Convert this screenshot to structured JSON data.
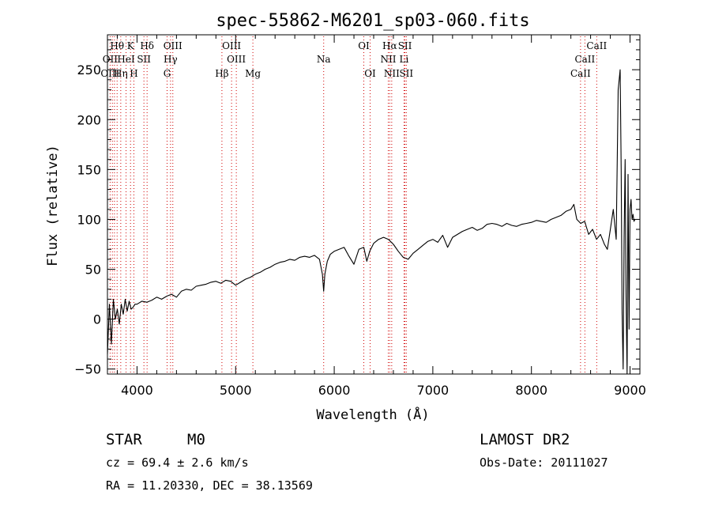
{
  "chart_data": {
    "type": "line",
    "title": "spec-55862-M6201_sp03-060.fits",
    "xlabel": "Wavelength (Å)",
    "ylabel": "Flux (relative)",
    "xlim": [
      3700,
      9100
    ],
    "ylim": [
      -55,
      285
    ],
    "xticks": [
      4000,
      5000,
      6000,
      7000,
      8000,
      9000
    ],
    "yticks": [
      -50,
      0,
      50,
      100,
      150,
      200,
      250
    ],
    "grid": false,
    "line_color": "#000000",
    "marker_color": "#d00000",
    "series": [
      {
        "x": [
          3700,
          3720,
          3740,
          3760,
          3780,
          3800,
          3820,
          3840,
          3860,
          3880,
          3900,
          3920,
          3940,
          3960,
          3980,
          4000,
          4050,
          4100,
          4150,
          4200,
          4250,
          4300,
          4350,
          4400,
          4450,
          4500,
          4550,
          4600,
          4650,
          4700,
          4750,
          4800,
          4850,
          4900,
          4950,
          5000,
          5050,
          5100,
          5150,
          5200,
          5250,
          5300,
          5350,
          5400,
          5450,
          5500,
          5550,
          5600,
          5650,
          5700,
          5750,
          5800,
          5850,
          5880,
          5893,
          5905,
          5930,
          5960,
          6000,
          6050,
          6100,
          6150,
          6200,
          6250,
          6300,
          6330,
          6360,
          6400,
          6450,
          6500,
          6550,
          6600,
          6650,
          6700,
          6750,
          6800,
          6850,
          6900,
          6950,
          7000,
          7050,
          7100,
          7150,
          7200,
          7250,
          7300,
          7350,
          7400,
          7450,
          7500,
          7550,
          7600,
          7650,
          7700,
          7750,
          7800,
          7850,
          7900,
          7950,
          8000,
          8050,
          8100,
          8150,
          8200,
          8250,
          8300,
          8350,
          8400,
          8430,
          8460,
          8500,
          8540,
          8580,
          8620,
          8660,
          8700,
          8740,
          8770,
          8800,
          8830,
          8860,
          8880,
          8900,
          8910,
          8920,
          8930,
          8940,
          8950,
          8960,
          8970,
          8980,
          8990,
          9000,
          9010,
          9020,
          9030,
          9040,
          9050
        ],
        "y": [
          -35,
          15,
          -25,
          20,
          0,
          10,
          -5,
          15,
          5,
          20,
          8,
          18,
          10,
          12,
          15,
          15,
          18,
          17,
          19,
          22,
          20,
          23,
          25,
          22,
          28,
          30,
          29,
          33,
          34,
          35,
          37,
          38,
          36,
          39,
          38,
          34,
          37,
          40,
          42,
          45,
          47,
          50,
          52,
          55,
          57,
          58,
          60,
          59,
          62,
          63,
          62,
          64,
          60,
          45,
          28,
          45,
          58,
          65,
          68,
          70,
          72,
          63,
          55,
          70,
          72,
          58,
          68,
          76,
          80,
          82,
          80,
          75,
          68,
          62,
          60,
          66,
          70,
          74,
          78,
          80,
          77,
          84,
          72,
          82,
          85,
          88,
          90,
          92,
          89,
          91,
          95,
          96,
          95,
          93,
          96,
          94,
          93,
          95,
          96,
          97,
          99,
          98,
          97,
          100,
          102,
          104,
          108,
          110,
          115,
          100,
          96,
          98,
          85,
          90,
          80,
          85,
          75,
          70,
          90,
          110,
          80,
          230,
          250,
          150,
          5,
          -50,
          80,
          160,
          20,
          -55,
          145,
          -10,
          110,
          120,
          100,
          105,
          98,
          100
        ]
      }
    ],
    "spectral_lines": {
      "row1": [
        {
          "label": "Hθ",
          "wl": 3798
        },
        {
          "label": "K",
          "wl": 3934
        },
        {
          "label": "Hδ",
          "wl": 4102
        },
        {
          "label": "OIII",
          "wl": 4363
        },
        {
          "label": "OIII",
          "wl": 4959
        },
        {
          "label": "OI",
          "wl": 6300
        },
        {
          "label": "Hα",
          "wl": 6563
        },
        {
          "label": "SII",
          "wl": 6717
        },
        {
          "label": "CaII",
          "wl": 8662
        }
      ],
      "row2": [
        {
          "label": "OII",
          "wl": 3727
        },
        {
          "label": "HeI",
          "wl": 3889
        },
        {
          "label": "SII",
          "wl": 4070
        },
        {
          "label": "Hγ",
          "wl": 4340
        },
        {
          "label": "OIII",
          "wl": 5007
        },
        {
          "label": "Na",
          "wl": 5893
        },
        {
          "label": "NII",
          "wl": 6548
        },
        {
          "label": "Li",
          "wl": 6708
        },
        {
          "label": "CaII",
          "wl": 8542
        }
      ],
      "row3": [
        {
          "label": "OIII",
          "wl": 3727
        },
        {
          "label": "Hη",
          "wl": 3835
        },
        {
          "label": "H",
          "wl": 3968
        },
        {
          "label": "G",
          "wl": 4305
        },
        {
          "label": "Hβ",
          "wl": 4861
        },
        {
          "label": "Mg",
          "wl": 5175
        },
        {
          "label": "OI",
          "wl": 6364
        },
        {
          "label": "NII",
          "wl": 6583
        },
        {
          "label": "SII",
          "wl": 6731
        },
        {
          "label": "CaII",
          "wl": 8498
        }
      ],
      "extra_markers": [
        3750,
        3771,
        3889,
        3934,
        3968,
        4340,
        4363,
        4959,
        5007,
        6300,
        6548,
        6563,
        6583,
        6708,
        6717,
        6731,
        8498,
        8542,
        8662
      ]
    }
  },
  "footer": {
    "object_type": "STAR",
    "subclass": "M0",
    "survey": "LAMOST DR2",
    "redshift": "cz =  69.4 ± 2.6 km/s",
    "obs_date": "Obs-Date: 20111027",
    "coords": "RA =  11.20330, DEC =  38.13569"
  }
}
